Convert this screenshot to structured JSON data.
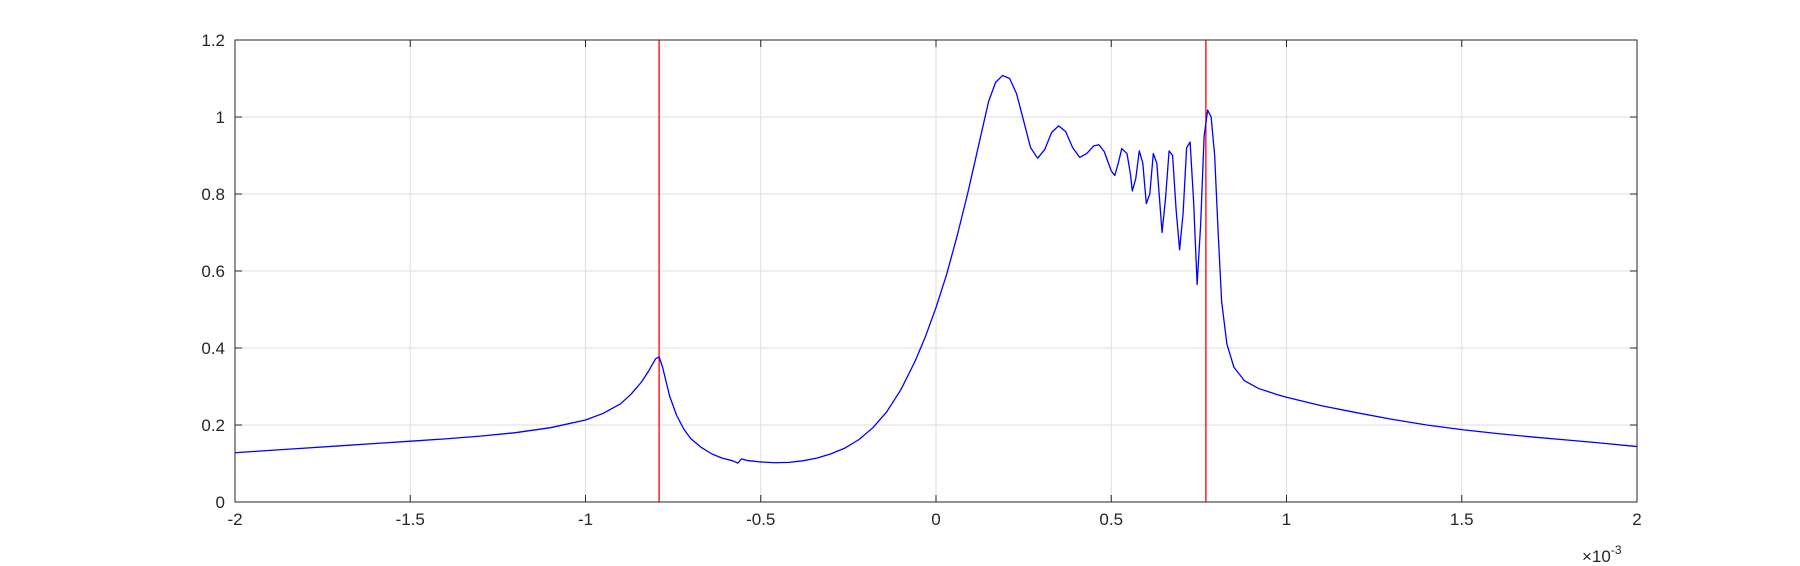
{
  "chart_data": {
    "type": "line",
    "title": "",
    "xlabel": "",
    "ylabel": "",
    "xlim": [
      -2,
      2
    ],
    "ylim": [
      0,
      1.2
    ],
    "x_ticks": [
      -2,
      -1.5,
      -1,
      -0.5,
      0,
      0.5,
      1,
      1.5,
      2
    ],
    "x_tick_labels": [
      "-2",
      "-1.5",
      "-1",
      "-0.5",
      "0",
      "0.5",
      "1",
      "1.5",
      "2"
    ],
    "y_ticks": [
      0,
      0.2,
      0.4,
      0.6,
      0.8,
      1,
      1.2
    ],
    "y_tick_labels": [
      "0",
      "0.2",
      "0.4",
      "0.6",
      "0.8",
      "1",
      "1.2"
    ],
    "x_exponent": {
      "base": "×10",
      "power": "-3"
    },
    "grid": true,
    "legend": "none",
    "colors": {
      "series": "#0000ff",
      "markers": "#ff0000",
      "grid": "#dedede",
      "axes": "#262626"
    },
    "vertical_lines": [
      {
        "x": -0.79,
        "color": "#ff0000"
      },
      {
        "x": 0.77,
        "color": "#ff0000"
      }
    ],
    "series": [
      {
        "color": "#0000ff",
        "points": [
          [
            -2.0,
            0.128
          ],
          [
            -1.9,
            0.134
          ],
          [
            -1.8,
            0.14
          ],
          [
            -1.7,
            0.146
          ],
          [
            -1.6,
            0.152
          ],
          [
            -1.5,
            0.158
          ],
          [
            -1.4,
            0.164
          ],
          [
            -1.3,
            0.171
          ],
          [
            -1.2,
            0.18
          ],
          [
            -1.1,
            0.193
          ],
          [
            -1.0,
            0.213
          ],
          [
            -0.95,
            0.23
          ],
          [
            -0.9,
            0.255
          ],
          [
            -0.87,
            0.28
          ],
          [
            -0.84,
            0.312
          ],
          [
            -0.82,
            0.34
          ],
          [
            -0.8,
            0.372
          ],
          [
            -0.79,
            0.377
          ],
          [
            -0.78,
            0.35
          ],
          [
            -0.76,
            0.275
          ],
          [
            -0.74,
            0.225
          ],
          [
            -0.72,
            0.19
          ],
          [
            -0.7,
            0.165
          ],
          [
            -0.67,
            0.142
          ],
          [
            -0.64,
            0.125
          ],
          [
            -0.61,
            0.114
          ],
          [
            -0.58,
            0.107
          ],
          [
            -0.565,
            0.101
          ],
          [
            -0.555,
            0.112
          ],
          [
            -0.54,
            0.108
          ],
          [
            -0.52,
            0.106
          ],
          [
            -0.5,
            0.104
          ],
          [
            -0.46,
            0.102
          ],
          [
            -0.42,
            0.103
          ],
          [
            -0.38,
            0.107
          ],
          [
            -0.34,
            0.114
          ],
          [
            -0.3,
            0.125
          ],
          [
            -0.26,
            0.14
          ],
          [
            -0.22,
            0.162
          ],
          [
            -0.18,
            0.193
          ],
          [
            -0.14,
            0.235
          ],
          [
            -0.1,
            0.292
          ],
          [
            -0.06,
            0.365
          ],
          [
            -0.03,
            0.43
          ],
          [
            0.0,
            0.505
          ],
          [
            0.03,
            0.59
          ],
          [
            0.06,
            0.69
          ],
          [
            0.09,
            0.8
          ],
          [
            0.12,
            0.92
          ],
          [
            0.15,
            1.04
          ],
          [
            0.17,
            1.09
          ],
          [
            0.19,
            1.108
          ],
          [
            0.21,
            1.1
          ],
          [
            0.23,
            1.06
          ],
          [
            0.25,
            0.99
          ],
          [
            0.27,
            0.92
          ],
          [
            0.29,
            0.893
          ],
          [
            0.31,
            0.915
          ],
          [
            0.33,
            0.96
          ],
          [
            0.35,
            0.977
          ],
          [
            0.37,
            0.962
          ],
          [
            0.39,
            0.92
          ],
          [
            0.41,
            0.895
          ],
          [
            0.43,
            0.905
          ],
          [
            0.45,
            0.925
          ],
          [
            0.465,
            0.928
          ],
          [
            0.48,
            0.91
          ],
          [
            0.5,
            0.86
          ],
          [
            0.51,
            0.848
          ],
          [
            0.52,
            0.88
          ],
          [
            0.53,
            0.918
          ],
          [
            0.545,
            0.905
          ],
          [
            0.555,
            0.85
          ],
          [
            0.56,
            0.808
          ],
          [
            0.57,
            0.84
          ],
          [
            0.58,
            0.912
          ],
          [
            0.59,
            0.88
          ],
          [
            0.6,
            0.775
          ],
          [
            0.61,
            0.8
          ],
          [
            0.62,
            0.905
          ],
          [
            0.63,
            0.88
          ],
          [
            0.64,
            0.76
          ],
          [
            0.645,
            0.7
          ],
          [
            0.655,
            0.79
          ],
          [
            0.665,
            0.912
          ],
          [
            0.675,
            0.9
          ],
          [
            0.685,
            0.76
          ],
          [
            0.695,
            0.655
          ],
          [
            0.705,
            0.75
          ],
          [
            0.715,
            0.92
          ],
          [
            0.725,
            0.935
          ],
          [
            0.735,
            0.78
          ],
          [
            0.745,
            0.565
          ],
          [
            0.755,
            0.72
          ],
          [
            0.765,
            0.95
          ],
          [
            0.775,
            1.018
          ],
          [
            0.785,
            1.0
          ],
          [
            0.795,
            0.9
          ],
          [
            0.805,
            0.7
          ],
          [
            0.815,
            0.52
          ],
          [
            0.83,
            0.41
          ],
          [
            0.85,
            0.35
          ],
          [
            0.88,
            0.315
          ],
          [
            0.92,
            0.295
          ],
          [
            0.97,
            0.28
          ],
          [
            1.0,
            0.272
          ],
          [
            1.1,
            0.25
          ],
          [
            1.2,
            0.232
          ],
          [
            1.3,
            0.215
          ],
          [
            1.4,
            0.2
          ],
          [
            1.5,
            0.188
          ],
          [
            1.6,
            0.178
          ],
          [
            1.7,
            0.169
          ],
          [
            1.8,
            0.161
          ],
          [
            1.9,
            0.153
          ],
          [
            2.0,
            0.144
          ]
        ]
      }
    ]
  }
}
